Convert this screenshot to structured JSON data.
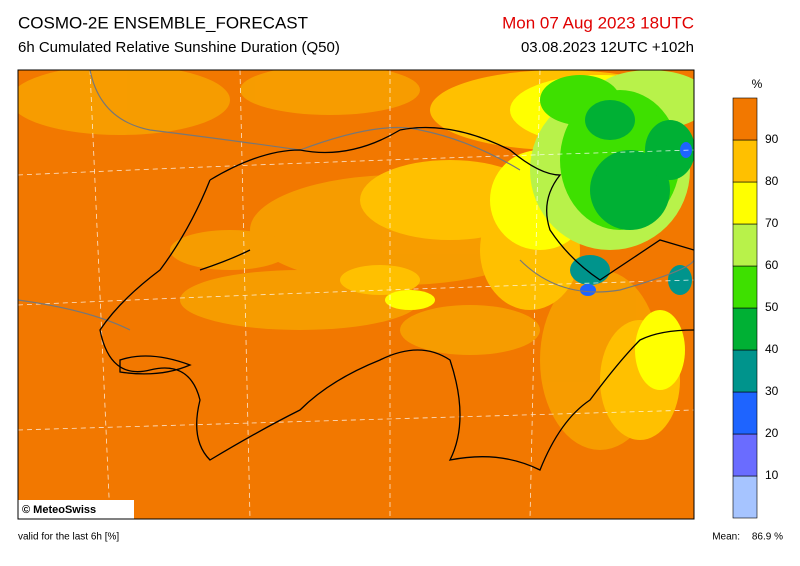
{
  "header": {
    "title": "COSMO-2E ENSEMBLE_FORECAST",
    "subtitle": "6h Cumulated Relative Sunshine Duration (Q50)",
    "valid_time": "Mon 07 Aug 2023 18UTC",
    "run": "03.08.2023 12UTC +102h"
  },
  "colorbar": {
    "unit": "%",
    "levels": [
      10,
      20,
      30,
      40,
      50,
      60,
      70,
      80,
      90
    ],
    "colors": [
      "#a6c4ff",
      "#6a6cff",
      "#1e64ff",
      "#00948c",
      "#00b034",
      "#3ee000",
      "#b8f24a",
      "#ffff00",
      "#ffc000",
      "#f27800"
    ]
  },
  "map": {
    "copyright": "© MeteoSwiss"
  },
  "footer": {
    "note": "valid for the last 6h [%]",
    "mean_label": "Mean:",
    "mean_value": "86.9 %"
  }
}
